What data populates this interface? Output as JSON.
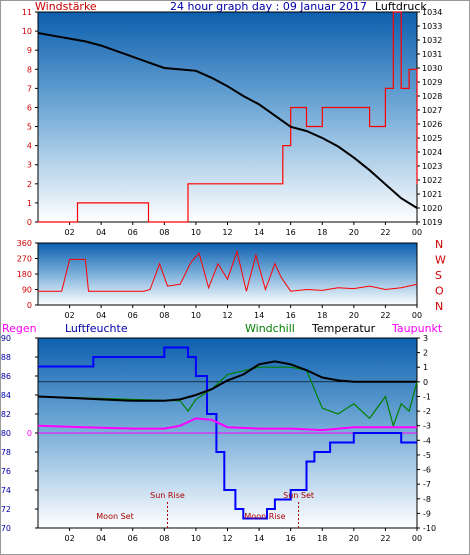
{
  "header": {
    "left_label": "Windstärke",
    "title": "24 hour graph day : 09 Januar 2017",
    "right_label": "Luftdruck"
  },
  "legend": {
    "regen": "Regen",
    "luftfeuchte": "Luftfeuchte",
    "windchill": "Windchill",
    "temperatur": "Temperatur",
    "taupunkt": "Taupunkt"
  },
  "colors": {
    "wind": "#ff0000",
    "pressure": "#000000",
    "direction": "#ff0000",
    "humidity": "#0000ff",
    "temperature": "#000000",
    "windchill": "#008000",
    "dewpoint": "#ff00ff",
    "axis_left": "#cc0000",
    "axis_humidity": "#0000aa",
    "axis_right": "#0000aa"
  },
  "chart_data": [
    {
      "type": "line",
      "id": "wind-pressure",
      "x_ticks": [
        "02",
        "04",
        "06",
        "08",
        "10",
        "12",
        "14",
        "16",
        "18",
        "20",
        "22",
        "00"
      ],
      "ylabel_left": "Windstärke",
      "ylabel_right": "Luftdruck",
      "yleft_ticks": [
        "0",
        "1",
        "2",
        "3",
        "4",
        "5",
        "6",
        "7",
        "8",
        "9",
        "10",
        "11"
      ],
      "yleft_lim": [
        0,
        11
      ],
      "yright_ticks": [
        "1019",
        "1020",
        "1021",
        "1022",
        "1023",
        "1024",
        "1025",
        "1026",
        "1027",
        "1028",
        "1029",
        "1030",
        "1031",
        "1032",
        "1033",
        "1034"
      ],
      "yright_lim": [
        1019,
        1034
      ],
      "pressure": {
        "x": [
          0,
          1,
          2,
          3,
          4,
          5,
          6,
          7,
          8,
          9,
          10,
          11,
          12,
          13,
          14,
          15,
          16,
          17,
          18,
          19,
          20,
          21,
          22,
          23,
          24
        ],
        "y": [
          1032.5,
          1032.3,
          1032.1,
          1031.9,
          1031.6,
          1031.2,
          1030.8,
          1030.4,
          1030.0,
          1029.9,
          1029.8,
          1029.3,
          1028.7,
          1028.0,
          1027.4,
          1026.6,
          1025.8,
          1025.5,
          1025.0,
          1024.4,
          1023.6,
          1022.7,
          1021.7,
          1020.7,
          1020.0
        ]
      },
      "wind": {
        "x": [
          0,
          2.5,
          7.0,
          9.5,
          12.0,
          14.5,
          15.5,
          16.0,
          17.0,
          18.0,
          19.0,
          20.0,
          21.0,
          22.0,
          22.5,
          23.0,
          23.5,
          24.0
        ],
        "y": [
          0,
          1,
          0,
          2,
          2,
          2,
          4,
          6,
          5,
          6,
          6,
          6,
          5,
          7,
          11,
          7,
          8,
          2
        ]
      }
    },
    {
      "type": "scatter",
      "id": "direction",
      "x_ticks": [
        "02",
        "04",
        "06",
        "08",
        "10",
        "12",
        "14",
        "16",
        "18",
        "20",
        "22",
        "00"
      ],
      "yleft_ticks": [
        "0",
        "90",
        "180",
        "270",
        "360"
      ],
      "ylim": [
        0,
        360
      ],
      "yright_ticks": [
        "N",
        "W",
        "S",
        "O",
        "N"
      ],
      "x": [
        0,
        1.5,
        2.0,
        3.0,
        3.2,
        6.0,
        6.7,
        7.1,
        7.7,
        8.2,
        9.0,
        9.7,
        10.2,
        10.8,
        11.4,
        12.0,
        12.6,
        13.2,
        13.8,
        14.4,
        15.0,
        15.4,
        16.0,
        17.0,
        18.0,
        19.0,
        20.0,
        21.0,
        22.0,
        23.0,
        24.0
      ],
      "y": [
        80,
        80,
        265,
        265,
        80,
        80,
        80,
        90,
        240,
        110,
        120,
        250,
        300,
        100,
        240,
        150,
        310,
        80,
        290,
        90,
        240,
        160,
        80,
        90,
        85,
        100,
        95,
        110,
        90,
        100,
        120
      ]
    },
    {
      "type": "line",
      "id": "humidity-temperature",
      "x_ticks": [
        "02",
        "04",
        "06",
        "08",
        "10",
        "12",
        "14",
        "16",
        "18",
        "20",
        "22",
        "00"
      ],
      "yleft_ticks": [
        "70",
        "72",
        "74",
        "76",
        "78",
        "80",
        "82",
        "84",
        "86",
        "88",
        "90"
      ],
      "yleft_lim": [
        70,
        90
      ],
      "yright_ticks": [
        "-10",
        "-9",
        "-8",
        "-7",
        "-6",
        "-5",
        "-4",
        "-3",
        "-2",
        "-1",
        "0",
        "1",
        "2",
        "3"
      ],
      "yright_lim": [
        -10,
        3
      ],
      "rain_value": 0,
      "annotations": {
        "moon_set": "Moon Set",
        "sun_rise": "Sun Rise",
        "moon_rise": "Moon Rise",
        "sun_set": "Sun Set",
        "sun_rise_x": 8.2,
        "sun_set_x": 16.5
      },
      "humidity": {
        "x": [
          0,
          3.0,
          3.5,
          8.0,
          9.5,
          10.0,
          10.7,
          11.3,
          11.8,
          12.5,
          13.0,
          13.5,
          14.5,
          15.0,
          16.0,
          17.0,
          17.5,
          18.5,
          20.0,
          21.0,
          22.5,
          23.0,
          24.0
        ],
        "y": [
          87,
          87,
          88,
          89,
          88,
          86,
          82,
          78,
          74,
          72,
          71,
          71,
          72,
          73,
          74,
          77,
          78,
          79,
          80,
          80,
          80,
          79,
          79
        ]
      },
      "temperature": {
        "x": [
          0,
          2.0,
          4.0,
          6.0,
          8.0,
          9.0,
          10.0,
          11.0,
          12.0,
          13.0,
          14.0,
          15.0,
          16.0,
          17.0,
          18.0,
          19.0,
          20.0,
          21.0,
          22.0,
          23.0,
          24.0
        ],
        "y": [
          -1.0,
          -1.1,
          -1.2,
          -1.3,
          -1.3,
          -1.2,
          -0.9,
          -0.5,
          0.1,
          0.5,
          1.2,
          1.4,
          1.2,
          0.8,
          0.3,
          0.1,
          0.0,
          0.0,
          0.0,
          0.0,
          0.0
        ]
      },
      "windchill": {
        "x": [
          0,
          9.0,
          9.5,
          10.0,
          11.0,
          12.0,
          14.0,
          16.0,
          17.0,
          18.0,
          19.0,
          20.0,
          21.0,
          22.0,
          22.5,
          23.0,
          23.5,
          24.0
        ],
        "y": [
          -1.0,
          -1.3,
          -2.0,
          -1.2,
          -0.5,
          0.5,
          1.0,
          1.0,
          0.8,
          -1.8,
          -2.2,
          -1.5,
          -2.5,
          -1.0,
          -3.0,
          -1.5,
          -2.0,
          0.0
        ]
      },
      "dewpoint": {
        "x": [
          0,
          3.0,
          6.0,
          8.0,
          9.0,
          10.0,
          11.0,
          12.0,
          14.0,
          16.0,
          18.0,
          20.0,
          22.0,
          24.0
        ],
        "y": [
          -3.0,
          -3.1,
          -3.2,
          -3.2,
          -3.0,
          -2.5,
          -2.6,
          -3.1,
          -3.2,
          -3.2,
          -3.3,
          -3.1,
          -3.1,
          -3.1
        ]
      }
    }
  ]
}
